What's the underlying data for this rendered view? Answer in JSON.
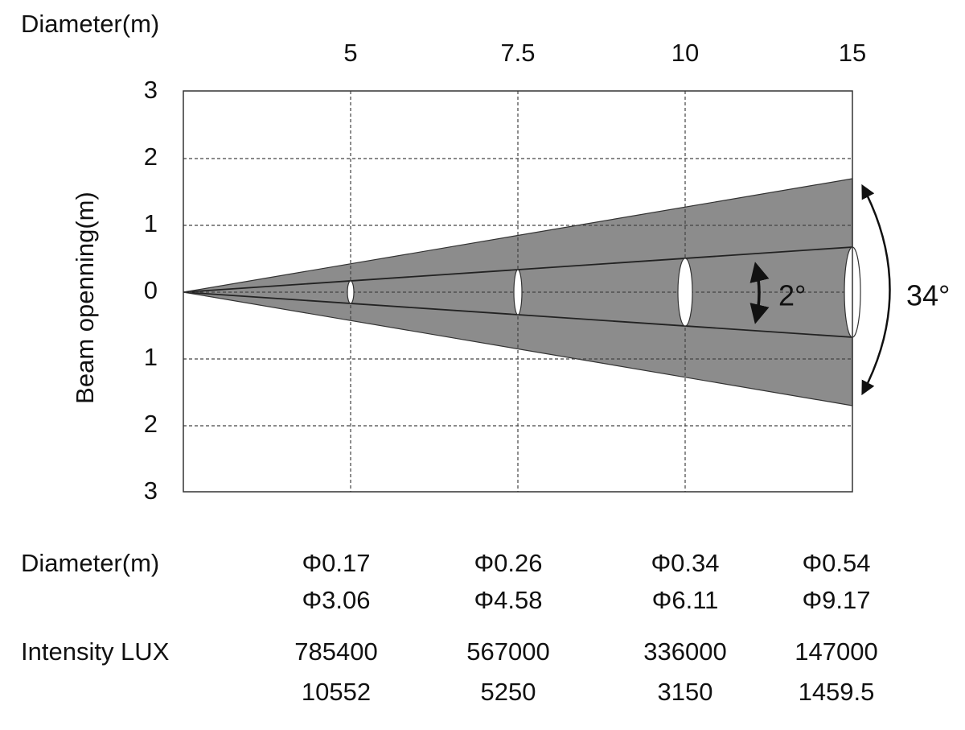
{
  "header": {
    "distance_label": "Diameter(m)"
  },
  "distances": [
    5,
    7.5,
    10,
    15
  ],
  "y_axis": {
    "label": "Beam openning(m)",
    "ticks": [
      3,
      2,
      1,
      0,
      {
        "value": -1,
        "label": "1"
      },
      {
        "value": -2,
        "label": "2"
      },
      {
        "value": -3,
        "label": "3"
      }
    ]
  },
  "angles": {
    "narrow": "2°",
    "wide": "34°"
  },
  "table": {
    "diameter_label": "Diameter(m)",
    "diameter_rows": [
      [
        "Φ0.17",
        "Φ0.26",
        "Φ0.34",
        "Φ0.54"
      ],
      [
        "Φ3.06",
        "Φ4.58",
        "Φ6.11",
        "Φ9.17"
      ]
    ],
    "intensity_label": "Intensity LUX",
    "intensity_rows": [
      [
        785400,
        567000,
        336000,
        147000
      ],
      [
        10552,
        5250,
        3150,
        1459.5
      ]
    ]
  }
}
